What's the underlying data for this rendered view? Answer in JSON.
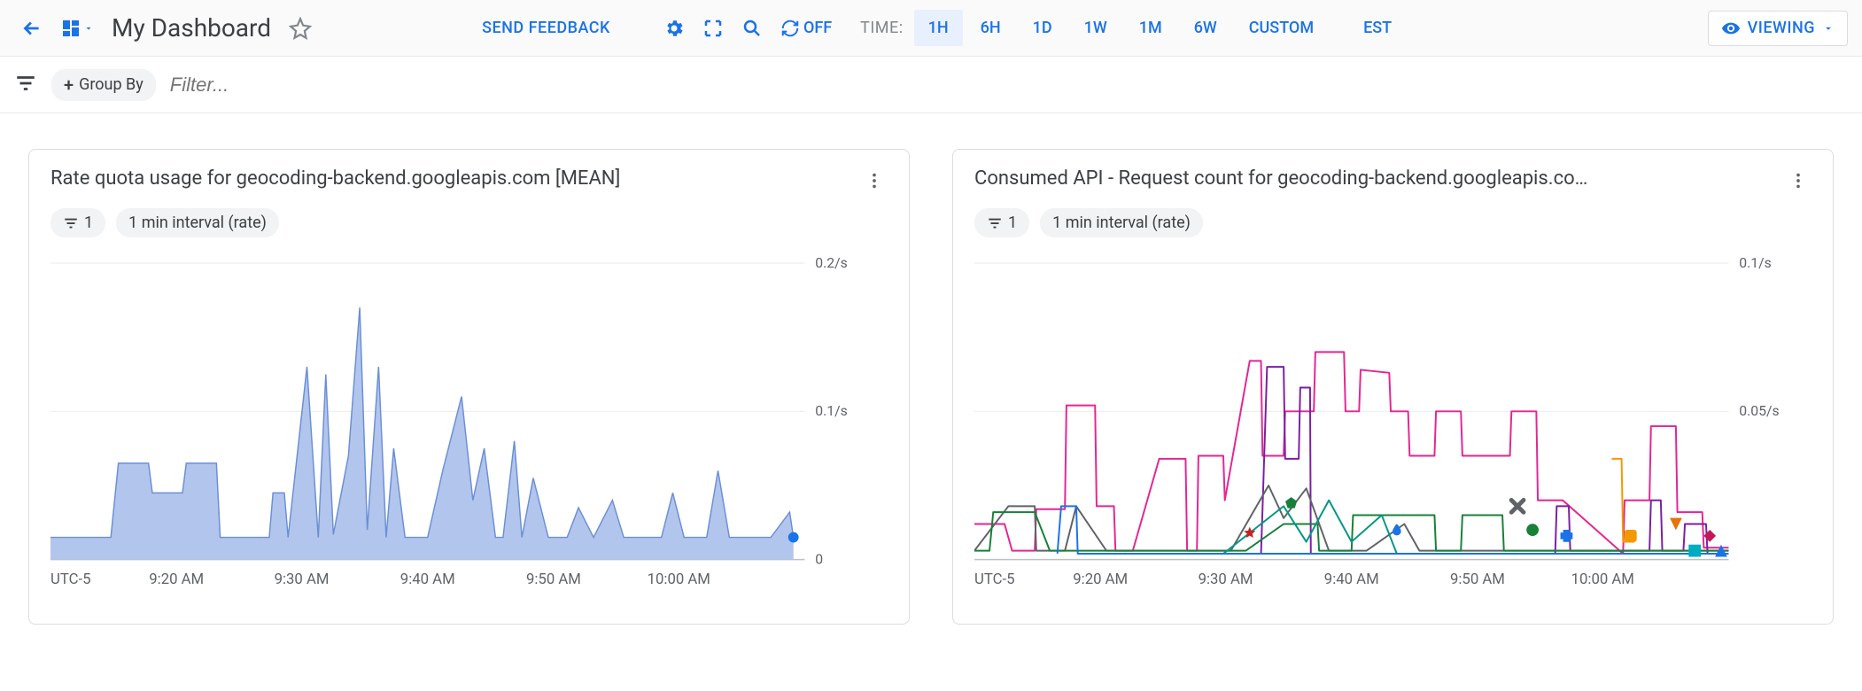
{
  "toolbar": {
    "page_title": "My Dashboard",
    "feedback_label": "SEND FEEDBACK",
    "auto_refresh_label": "OFF",
    "time_label": "TIME:",
    "time_ranges": [
      "1H",
      "6H",
      "1D",
      "1W",
      "1M",
      "6W",
      "CUSTOM"
    ],
    "active_time_index": 0,
    "timezone_label": "EST",
    "viewing_label": "VIEWING"
  },
  "filterbar": {
    "groupby_label": "Group By",
    "filter_placeholder": "Filter..."
  },
  "panels": [
    {
      "title": "Rate quota usage for geocoding-backend.googleapis.com [MEAN]",
      "filter_chip": "1",
      "interval_chip": "1 min interval (rate)",
      "chart": {
        "type": "area",
        "timezone_label": "UTC-5",
        "x_labels": [
          "9:20 AM",
          "9:30 AM",
          "9:40 AM",
          "9:50 AM",
          "10:00 AM"
        ],
        "x_positions": [
          0.167,
          0.333,
          0.5,
          0.667,
          0.833
        ],
        "y_ticks": [
          {
            "v": 0,
            "label": "0"
          },
          {
            "v": 0.1,
            "label": "0.1/s"
          },
          {
            "v": 0.2,
            "label": "0.2/s"
          }
        ],
        "ylim": [
          0,
          0.2
        ],
        "background_color": "#ffffff",
        "grid_color": "#e8eaed",
        "axis_color": "#bdc1c6",
        "series": {
          "stroke": "#6b8fd6",
          "fill": "#aec2eb",
          "fill_opacity": 0.95,
          "stroke_width": 1.5,
          "marker": {
            "x": 0.985,
            "y": 0.015,
            "color": "#1a73e8",
            "r": 6
          },
          "points": [
            [
              0.0,
              0.015
            ],
            [
              0.08,
              0.015
            ],
            [
              0.09,
              0.065
            ],
            [
              0.13,
              0.065
            ],
            [
              0.135,
              0.045
            ],
            [
              0.175,
              0.045
            ],
            [
              0.18,
              0.065
            ],
            [
              0.22,
              0.065
            ],
            [
              0.225,
              0.015
            ],
            [
              0.29,
              0.015
            ],
            [
              0.295,
              0.045
            ],
            [
              0.31,
              0.045
            ],
            [
              0.315,
              0.015
            ],
            [
              0.34,
              0.13
            ],
            [
              0.355,
              0.015
            ],
            [
              0.365,
              0.125
            ],
            [
              0.375,
              0.017
            ],
            [
              0.395,
              0.07
            ],
            [
              0.41,
              0.17
            ],
            [
              0.42,
              0.02
            ],
            [
              0.435,
              0.13
            ],
            [
              0.445,
              0.015
            ],
            [
              0.455,
              0.075
            ],
            [
              0.47,
              0.015
            ],
            [
              0.5,
              0.015
            ],
            [
              0.52,
              0.06
            ],
            [
              0.545,
              0.11
            ],
            [
              0.56,
              0.04
            ],
            [
              0.575,
              0.075
            ],
            [
              0.59,
              0.015
            ],
            [
              0.6,
              0.015
            ],
            [
              0.615,
              0.08
            ],
            [
              0.625,
              0.015
            ],
            [
              0.64,
              0.055
            ],
            [
              0.66,
              0.015
            ],
            [
              0.685,
              0.015
            ],
            [
              0.7,
              0.035
            ],
            [
              0.72,
              0.015
            ],
            [
              0.745,
              0.04
            ],
            [
              0.76,
              0.015
            ],
            [
              0.81,
              0.015
            ],
            [
              0.825,
              0.045
            ],
            [
              0.84,
              0.015
            ],
            [
              0.87,
              0.015
            ],
            [
              0.885,
              0.06
            ],
            [
              0.9,
              0.015
            ],
            [
              0.955,
              0.015
            ],
            [
              0.98,
              0.032
            ],
            [
              0.985,
              0.015
            ]
          ]
        }
      }
    },
    {
      "title": "Consumed API - Request count for geocoding-backend.googleapis.co…",
      "filter_chip": "1",
      "interval_chip": "1 min interval (rate)",
      "chart": {
        "type": "line",
        "timezone_label": "UTC-5",
        "x_labels": [
          "9:20 AM",
          "9:30 AM",
          "9:40 AM",
          "9:50 AM",
          "10:00 AM"
        ],
        "x_positions": [
          0.167,
          0.333,
          0.5,
          0.667,
          0.833
        ],
        "y_ticks": [
          {
            "v": 0,
            "label": ""
          },
          {
            "v": 0.05,
            "label": "0.05/s"
          },
          {
            "v": 0.1,
            "label": "0.1/s"
          }
        ],
        "ylim": [
          0,
          0.1
        ],
        "background_color": "#ffffff",
        "grid_color": "#e8eaed",
        "axis_color": "#bdc1c6",
        "stroke_width": 2.0,
        "markers": [
          {
            "shape": "star",
            "x": 0.365,
            "y": 0.009,
            "color": "#c5221f"
          },
          {
            "shape": "pentagon",
            "x": 0.42,
            "y": 0.019,
            "color": "#188038"
          },
          {
            "shape": "teardrop",
            "x": 0.56,
            "y": 0.01,
            "color": "#1a73e8"
          },
          {
            "shape": "x",
            "x": 0.72,
            "y": 0.018,
            "color": "#5f6368"
          },
          {
            "shape": "circle",
            "x": 0.74,
            "y": 0.01,
            "color": "#188038"
          },
          {
            "shape": "plus",
            "x": 0.785,
            "y": 0.008,
            "color": "#1a73e8"
          },
          {
            "shape": "square-rounded",
            "x": 0.87,
            "y": 0.008,
            "color": "#f29900"
          },
          {
            "shape": "triangle-down",
            "x": 0.93,
            "y": 0.012,
            "color": "#e8710a"
          },
          {
            "shape": "square",
            "x": 0.955,
            "y": 0.003,
            "color": "#00acc1"
          },
          {
            "shape": "diamond",
            "x": 0.975,
            "y": 0.008,
            "color": "#c2185b"
          },
          {
            "shape": "triangle-up",
            "x": 0.99,
            "y": 0.003,
            "color": "#1a73e8"
          }
        ],
        "series": [
          {
            "color": "#e52592",
            "points": [
              [
                0.0,
                0.012
              ],
              [
                0.04,
                0.012
              ],
              [
                0.05,
                0.003
              ],
              [
                0.08,
                0.003
              ],
              [
                0.082,
                0.017
              ],
              [
                0.12,
                0.017
              ],
              [
                0.122,
                0.052
              ],
              [
                0.16,
                0.052
              ],
              [
                0.162,
                0.018
              ],
              [
                0.185,
                0.018
              ],
              [
                0.187,
                0.003
              ],
              [
                0.21,
                0.003
              ],
              [
                0.245,
                0.034
              ],
              [
                0.28,
                0.034
              ],
              [
                0.282,
                0.003
              ],
              [
                0.295,
                0.003
              ],
              [
                0.297,
                0.035
              ],
              [
                0.33,
                0.035
              ],
              [
                0.332,
                0.02
              ],
              [
                0.365,
                0.067
              ],
              [
                0.38,
                0.067
              ],
              [
                0.382,
                0.035
              ],
              [
                0.41,
                0.035
              ],
              [
                0.412,
                0.05
              ],
              [
                0.45,
                0.05
              ],
              [
                0.452,
                0.07
              ],
              [
                0.49,
                0.07
              ],
              [
                0.492,
                0.05
              ],
              [
                0.51,
                0.05
              ],
              [
                0.512,
                0.064
              ],
              [
                0.55,
                0.063
              ],
              [
                0.552,
                0.05
              ],
              [
                0.575,
                0.05
              ],
              [
                0.577,
                0.035
              ],
              [
                0.61,
                0.035
              ],
              [
                0.612,
                0.05
              ],
              [
                0.645,
                0.05
              ],
              [
                0.647,
                0.035
              ],
              [
                0.71,
                0.035
              ],
              [
                0.712,
                0.05
              ],
              [
                0.745,
                0.05
              ],
              [
                0.747,
                0.02
              ],
              [
                0.78,
                0.02
              ],
              [
                0.86,
                0.002
              ],
              [
                0.862,
                0.02
              ],
              [
                0.895,
                0.02
              ],
              [
                0.897,
                0.045
              ],
              [
                0.93,
                0.045
              ],
              [
                0.932,
                0.016
              ],
              [
                0.965,
                0.016
              ],
              [
                0.967,
                0.004
              ],
              [
                1.0,
                0.004
              ]
            ]
          },
          {
            "color": "#7b1fa2",
            "points": [
              [
                0.34,
                0.002
              ],
              [
                0.38,
                0.002
              ],
              [
                0.382,
                0.017
              ],
              [
                0.388,
                0.065
              ],
              [
                0.41,
                0.065
              ],
              [
                0.412,
                0.034
              ],
              [
                0.43,
                0.034
              ],
              [
                0.432,
                0.058
              ],
              [
                0.445,
                0.058
              ],
              [
                0.446,
                0.002
              ],
              [
                0.77,
                0.002
              ],
              [
                0.772,
                0.018
              ],
              [
                0.788,
                0.018
              ],
              [
                0.79,
                0.003
              ],
              [
                0.81,
                0.003
              ],
              [
                0.895,
                0.003
              ],
              [
                0.897,
                0.02
              ],
              [
                0.91,
                0.02
              ],
              [
                0.912,
                0.003
              ],
              [
                0.94,
                0.003
              ],
              [
                0.942,
                0.012
              ],
              [
                0.97,
                0.012
              ],
              [
                0.972,
                0.002
              ],
              [
                1.0,
                0.002
              ]
            ]
          },
          {
            "color": "#5f6368",
            "points": [
              [
                0.0,
                0.003
              ],
              [
                0.045,
                0.018
              ],
              [
                0.08,
                0.018
              ],
              [
                0.082,
                0.003
              ],
              [
                0.12,
                0.003
              ],
              [
                0.135,
                0.018
              ],
              [
                0.175,
                0.003
              ],
              [
                0.25,
                0.003
              ],
              [
                0.34,
                0.003
              ],
              [
                0.39,
                0.025
              ],
              [
                0.41,
                0.014
              ],
              [
                0.44,
                0.024
              ],
              [
                0.47,
                0.003
              ],
              [
                0.52,
                0.003
              ],
              [
                0.57,
                0.012
              ],
              [
                0.59,
                0.003
              ],
              [
                0.65,
                0.003
              ],
              [
                1.0,
                0.003
              ]
            ]
          },
          {
            "color": "#188038",
            "points": [
              [
                0.0,
                0.003
              ],
              [
                0.02,
                0.003
              ],
              [
                0.025,
                0.016
              ],
              [
                0.08,
                0.016
              ],
              [
                0.1,
                0.003
              ],
              [
                0.145,
                0.003
              ],
              [
                0.36,
                0.003
              ],
              [
                0.41,
                0.012
              ],
              [
                0.455,
                0.012
              ],
              [
                0.457,
                0.003
              ],
              [
                0.5,
                0.003
              ],
              [
                0.502,
                0.015
              ],
              [
                0.61,
                0.015
              ],
              [
                0.612,
                0.003
              ],
              [
                0.645,
                0.003
              ],
              [
                0.647,
                0.015
              ],
              [
                0.7,
                0.015
              ],
              [
                0.702,
                0.003
              ],
              [
                1.0,
                0.003
              ]
            ]
          },
          {
            "color": "#009688",
            "points": [
              [
                0.33,
                0.002
              ],
              [
                0.41,
                0.018
              ],
              [
                0.44,
                0.006
              ],
              [
                0.47,
                0.02
              ],
              [
                0.5,
                0.006
              ],
              [
                0.54,
                0.015
              ],
              [
                0.56,
                0.002
              ],
              [
                1.0,
                0.002
              ]
            ]
          },
          {
            "color": "#1a73e8",
            "points": [
              [
                0.11,
                0.002
              ],
              [
                0.115,
                0.018
              ],
              [
                0.135,
                0.018
              ],
              [
                0.137,
                0.002
              ],
              [
                1.0,
                0.002
              ]
            ]
          },
          {
            "color": "#f29900",
            "points": [
              [
                0.845,
                0.034
              ],
              [
                0.858,
                0.034
              ],
              [
                0.86,
                0.006
              ],
              [
                0.875,
                0.006
              ]
            ]
          }
        ]
      }
    }
  ]
}
